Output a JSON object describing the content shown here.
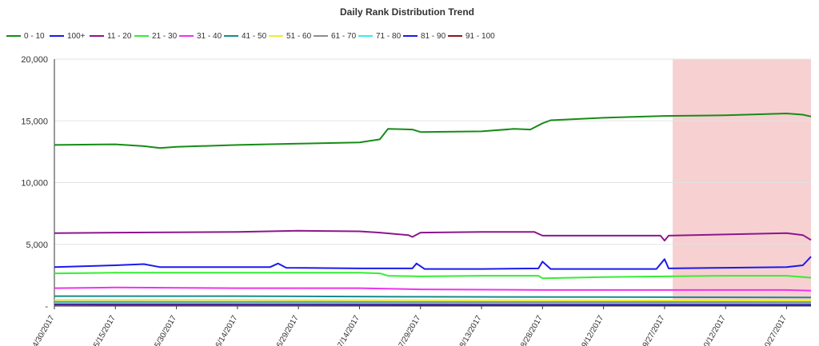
{
  "chart_data": {
    "type": "line",
    "title": "Daily Rank Distribution Trend",
    "xlabel": "",
    "ylabel": "",
    "x_start": "4/30/2017",
    "x_end": "11/2/2017",
    "x_tick_labels": [
      "4/30/2017",
      "5/15/2017",
      "5/30/2017",
      "6/14/2017",
      "6/29/2017",
      "7/14/2017",
      "7/29/2017",
      "8/13/2017",
      "8/28/2017",
      "9/12/2017",
      "9/27/2017",
      "10/12/2017",
      "10/27/2017"
    ],
    "ylim": [
      0,
      20000
    ],
    "y_ticks": [
      0,
      5000,
      10000,
      15000,
      20000
    ],
    "y_tick_labels": [
      "-",
      "5,000",
      "10,000",
      "15,000",
      "20,000"
    ],
    "grid": true,
    "legend_position": "top",
    "highlight_region": {
      "from": "9/29/2017",
      "to": "11/2/2017",
      "color": "#f7d0d2"
    },
    "series": [
      {
        "name": "0 - 10",
        "color": "#168c16",
        "points": [
          [
            "4/30/2017",
            13050
          ],
          [
            "5/15/2017",
            13100
          ],
          [
            "5/22/2017",
            12950
          ],
          [
            "5/26/2017",
            12800
          ],
          [
            "5/30/2017",
            12900
          ],
          [
            "6/14/2017",
            13050
          ],
          [
            "6/29/2017",
            13150
          ],
          [
            "7/14/2017",
            13250
          ],
          [
            "7/19/2017",
            13500
          ],
          [
            "7/21/2017",
            14350
          ],
          [
            "7/27/2017",
            14300
          ],
          [
            "7/29/2017",
            14100
          ],
          [
            "8/13/2017",
            14150
          ],
          [
            "8/21/2017",
            14350
          ],
          [
            "8/25/2017",
            14300
          ],
          [
            "8/28/2017",
            14800
          ],
          [
            "8/30/2017",
            15050
          ],
          [
            "9/12/2017",
            15250
          ],
          [
            "9/27/2017",
            15400
          ],
          [
            "10/12/2017",
            15450
          ],
          [
            "10/27/2017",
            15600
          ],
          [
            "10/31/2017",
            15500
          ],
          [
            "11/2/2017",
            15350
          ]
        ]
      },
      {
        "name": "100+",
        "color": "#1a1aee",
        "points": [
          [
            "4/30/2017",
            3150
          ],
          [
            "5/15/2017",
            3300
          ],
          [
            "5/22/2017",
            3400
          ],
          [
            "5/26/2017",
            3150
          ],
          [
            "6/14/2017",
            3150
          ],
          [
            "6/22/2017",
            3150
          ],
          [
            "6/24/2017",
            3450
          ],
          [
            "6/26/2017",
            3100
          ],
          [
            "7/14/2017",
            3050
          ],
          [
            "7/27/2017",
            3050
          ],
          [
            "7/28/2017",
            3450
          ],
          [
            "7/30/2017",
            3000
          ],
          [
            "8/13/2017",
            3000
          ],
          [
            "8/27/2017",
            3050
          ],
          [
            "8/28/2017",
            3600
          ],
          [
            "8/30/2017",
            3000
          ],
          [
            "9/12/2017",
            3000
          ],
          [
            "9/25/2017",
            3000
          ],
          [
            "9/27/2017",
            3800
          ],
          [
            "9/28/2017",
            3050
          ],
          [
            "10/12/2017",
            3100
          ],
          [
            "10/27/2017",
            3150
          ],
          [
            "10/31/2017",
            3300
          ],
          [
            "11/2/2017",
            4000
          ]
        ]
      },
      {
        "name": "11 - 20",
        "color": "#8c168c",
        "points": [
          [
            "4/30/2017",
            5900
          ],
          [
            "5/15/2017",
            5950
          ],
          [
            "6/14/2017",
            6000
          ],
          [
            "6/29/2017",
            6100
          ],
          [
            "7/14/2017",
            6050
          ],
          [
            "7/19/2017",
            5950
          ],
          [
            "7/26/2017",
            5750
          ],
          [
            "7/27/2017",
            5600
          ],
          [
            "7/29/2017",
            5950
          ],
          [
            "8/13/2017",
            6000
          ],
          [
            "8/26/2017",
            6000
          ],
          [
            "8/28/2017",
            5700
          ],
          [
            "9/12/2017",
            5700
          ],
          [
            "9/26/2017",
            5700
          ],
          [
            "9/27/2017",
            5300
          ],
          [
            "9/28/2017",
            5700
          ],
          [
            "10/12/2017",
            5800
          ],
          [
            "10/27/2017",
            5900
          ],
          [
            "10/31/2017",
            5750
          ],
          [
            "11/2/2017",
            5350
          ]
        ]
      },
      {
        "name": "21 - 30",
        "color": "#33ee33",
        "points": [
          [
            "4/30/2017",
            2650
          ],
          [
            "5/15/2017",
            2700
          ],
          [
            "6/14/2017",
            2700
          ],
          [
            "6/29/2017",
            2700
          ],
          [
            "7/14/2017",
            2700
          ],
          [
            "7/19/2017",
            2650
          ],
          [
            "7/21/2017",
            2450
          ],
          [
            "7/29/2017",
            2400
          ],
          [
            "8/13/2017",
            2450
          ],
          [
            "8/27/2017",
            2450
          ],
          [
            "8/28/2017",
            2250
          ],
          [
            "9/12/2017",
            2350
          ],
          [
            "9/27/2017",
            2400
          ],
          [
            "10/12/2017",
            2450
          ],
          [
            "10/27/2017",
            2450
          ],
          [
            "11/2/2017",
            2300
          ]
        ]
      },
      {
        "name": "31 - 40",
        "color": "#ee33ee",
        "points": [
          [
            "4/30/2017",
            1450
          ],
          [
            "5/15/2017",
            1500
          ],
          [
            "6/14/2017",
            1450
          ],
          [
            "7/14/2017",
            1450
          ],
          [
            "7/29/2017",
            1350
          ],
          [
            "8/28/2017",
            1300
          ],
          [
            "9/27/2017",
            1300
          ],
          [
            "10/27/2017",
            1300
          ],
          [
            "11/2/2017",
            1250
          ]
        ]
      },
      {
        "name": "41 - 50",
        "color": "#168c8c",
        "points": [
          [
            "4/30/2017",
            800
          ],
          [
            "6/14/2017",
            800
          ],
          [
            "7/29/2017",
            750
          ],
          [
            "9/27/2017",
            720
          ],
          [
            "11/2/2017",
            700
          ]
        ]
      },
      {
        "name": "51 - 60",
        "color": "#eeee33",
        "points": [
          [
            "4/30/2017",
            500
          ],
          [
            "6/14/2017",
            500
          ],
          [
            "7/29/2017",
            470
          ],
          [
            "9/27/2017",
            450
          ],
          [
            "11/2/2017",
            450
          ]
        ]
      },
      {
        "name": "61 - 70",
        "color": "#8c8c8c",
        "points": [
          [
            "4/30/2017",
            350
          ],
          [
            "7/29/2017",
            330
          ],
          [
            "11/2/2017",
            320
          ]
        ]
      },
      {
        "name": "71 - 80",
        "color": "#33eeee",
        "points": [
          [
            "4/30/2017",
            250
          ],
          [
            "7/29/2017",
            240
          ],
          [
            "11/2/2017",
            230
          ]
        ]
      },
      {
        "name": "81 - 90",
        "color": "#1a1aee",
        "points": [
          [
            "4/30/2017",
            180
          ],
          [
            "7/29/2017",
            170
          ],
          [
            "11/2/2017",
            160
          ]
        ]
      },
      {
        "name": "91 - 100",
        "color": "#8c1616",
        "points": [
          [
            "4/30/2017",
            110
          ],
          [
            "7/29/2017",
            100
          ],
          [
            "11/2/2017",
            100
          ]
        ]
      }
    ]
  }
}
